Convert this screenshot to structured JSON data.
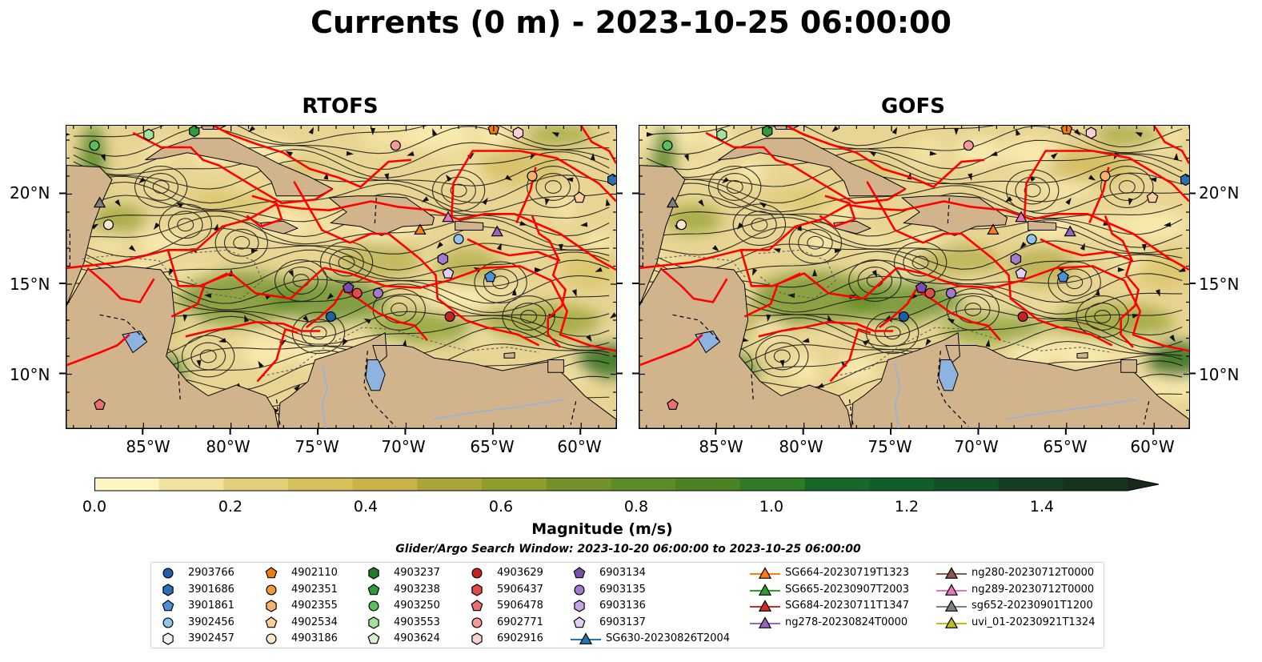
{
  "title": "Currents (0 m) - 2023-10-25 06:00:00",
  "panels": [
    {
      "title": "RTOFS"
    },
    {
      "title": "GOFS"
    }
  ],
  "map": {
    "lat_labels": [
      "20°N",
      "15°N",
      "10°N"
    ],
    "lon_labels": [
      "85°W",
      "80°W",
      "75°W",
      "70°W",
      "65°W",
      "60°W"
    ],
    "colors": {
      "land": "#d2b48c",
      "water_low": "#fff6c2",
      "water_mid": "#c9b64c",
      "water_high": "#2f6e1c",
      "eez": "#ff0000",
      "lakes": "#8fb3e0"
    }
  },
  "colorbar": {
    "label": "Magnitude (m/s)",
    "ticks": [
      "0.0",
      "0.2",
      "0.4",
      "0.6",
      "0.8",
      "1.0",
      "1.2",
      "1.4"
    ],
    "colors": [
      "#fdf6c3",
      "#f1e39e",
      "#e2cf7a",
      "#d6c05c",
      "#c9b24a",
      "#a9a53a",
      "#8f9d2a",
      "#73932a",
      "#5e8b25",
      "#4b8223",
      "#2f7a24",
      "#17692a",
      "#115d2c",
      "#124f29",
      "#163f22",
      "#17331c",
      "#19281a"
    ]
  },
  "search_window": "Glider/Argo Search Window: 2023-10-20 06:00:00 to 2023-10-25 06:00:00",
  "legend": [
    {
      "label": "2903766",
      "shape": "circle",
      "color": "#1f5fa8"
    },
    {
      "label": "3901686",
      "shape": "hexagon",
      "color": "#2c6fb3"
    },
    {
      "label": "3901861",
      "shape": "pentagon",
      "color": "#4a90d9"
    },
    {
      "label": "3902456",
      "shape": "circle",
      "color": "#8fc4ee"
    },
    {
      "label": "3902457",
      "shape": "hexagon",
      "color": "#e8f3fc"
    },
    {
      "label": "4902110",
      "shape": "pentagon",
      "color": "#ee7c0e"
    },
    {
      "label": "4902351",
      "shape": "circle",
      "color": "#f39a3c"
    },
    {
      "label": "4902355",
      "shape": "hexagon",
      "color": "#f7b26b"
    },
    {
      "label": "4902534",
      "shape": "pentagon",
      "color": "#fbcf98"
    },
    {
      "label": "4903186",
      "shape": "circle",
      "color": "#fde8cc"
    },
    {
      "label": "4903237",
      "shape": "hexagon",
      "color": "#1f7a2e"
    },
    {
      "label": "4903238",
      "shape": "pentagon",
      "color": "#2e9a3c"
    },
    {
      "label": "4903250",
      "shape": "circle",
      "color": "#57c05b"
    },
    {
      "label": "4903553",
      "shape": "hexagon",
      "color": "#a3e29a"
    },
    {
      "label": "4903624",
      "shape": "pentagon",
      "color": "#d7f5cf"
    },
    {
      "label": "4903629",
      "shape": "circle",
      "color": "#c82121"
    },
    {
      "label": "5906437",
      "shape": "hexagon",
      "color": "#e04b4b"
    },
    {
      "label": "5906478",
      "shape": "pentagon",
      "color": "#ec6f6f"
    },
    {
      "label": "6902771",
      "shape": "circle",
      "color": "#f49a9a"
    },
    {
      "label": "6902916",
      "shape": "hexagon",
      "color": "#fbd0d0"
    },
    {
      "label": "6903134",
      "shape": "pentagon",
      "color": "#7b4fb0"
    },
    {
      "label": "6903135",
      "shape": "circle",
      "color": "#a37ad0"
    },
    {
      "label": "6903136",
      "shape": "hexagon",
      "color": "#c5a6e6"
    },
    {
      "label": "6903137",
      "shape": "pentagon",
      "color": "#e2d0f7"
    },
    {
      "label": "SG630-20230826T2004",
      "shape": "triangle",
      "color": "#1f77b4"
    },
    {
      "label": "SG664-20230719T1323",
      "shape": "triangle",
      "color": "#ff7f0e"
    },
    {
      "label": "SG665-20230907T2003",
      "shape": "triangle",
      "color": "#2ca02c"
    },
    {
      "label": "SG684-20230711T1347",
      "shape": "triangle",
      "color": "#d62728"
    },
    {
      "label": "ng278-20230824T0000",
      "shape": "triangle",
      "color": "#9467bd"
    },
    {
      "label": "ng280-20230712T0000",
      "shape": "triangle",
      "color": "#8c564b"
    },
    {
      "label": "ng289-20230712T0000",
      "shape": "triangle",
      "color": "#e377c2"
    },
    {
      "label": "sg652-20230901T1200",
      "shape": "triangle",
      "color": "#7f7f7f"
    },
    {
      "label": "uvi_01-20230921T1324",
      "shape": "triangle",
      "color": "#bcbd22"
    }
  ],
  "markers": [
    {
      "shape": "circle",
      "color": "#57c05b",
      "lon": -87.8,
      "lat": 22.7
    },
    {
      "shape": "hexagon",
      "color": "#a3e29a",
      "lon": -84.7,
      "lat": 23.3
    },
    {
      "shape": "hexagon",
      "color": "#2e9a3c",
      "lon": -82.1,
      "lat": 23.5
    },
    {
      "shape": "triangle",
      "color": "#7f7f7f",
      "lon": -87.5,
      "lat": 19.5
    },
    {
      "shape": "circle",
      "color": "#fde8cc",
      "lon": -87.0,
      "lat": 18.3
    },
    {
      "shape": "circle",
      "color": "#f49a9a",
      "lon": -70.6,
      "lat": 22.7
    },
    {
      "shape": "pentagon",
      "color": "#ee7c0e",
      "lon": -65.0,
      "lat": 23.6
    },
    {
      "shape": "hexagon",
      "color": "#fbd0d0",
      "lon": -63.6,
      "lat": 23.4
    },
    {
      "shape": "circle",
      "color": "#f7b26b",
      "lon": -62.8,
      "lat": 21.0
    },
    {
      "shape": "hexagon",
      "color": "#2c6fb3",
      "lon": -58.2,
      "lat": 20.8
    },
    {
      "shape": "pentagon",
      "color": "#fbcf98",
      "lon": -60.1,
      "lat": 19.8
    },
    {
      "shape": "triangle",
      "color": "#e377c2",
      "lon": -67.6,
      "lat": 18.7
    },
    {
      "shape": "triangle",
      "color": "#ff7f0e",
      "lon": -69.2,
      "lat": 18.0
    },
    {
      "shape": "circle",
      "color": "#8fc4ee",
      "lon": -67.0,
      "lat": 17.5
    },
    {
      "shape": "triangle",
      "color": "#9467bd",
      "lon": -64.8,
      "lat": 17.9
    },
    {
      "shape": "hexagon",
      "color": "#a37ad0",
      "lon": -67.9,
      "lat": 16.4
    },
    {
      "shape": "pentagon",
      "color": "#e2d0f7",
      "lon": -67.6,
      "lat": 15.6
    },
    {
      "shape": "pentagon",
      "color": "#4a90d9",
      "lon": -65.2,
      "lat": 15.4
    },
    {
      "shape": "pentagon",
      "color": "#7b4fb0",
      "lon": -73.3,
      "lat": 14.8
    },
    {
      "shape": "circle",
      "color": "#e04b4b",
      "lon": -72.8,
      "lat": 14.5
    },
    {
      "shape": "circle",
      "color": "#a37ad0",
      "lon": -71.6,
      "lat": 14.5
    },
    {
      "shape": "circle",
      "color": "#1f5fa8",
      "lon": -74.3,
      "lat": 13.2
    },
    {
      "shape": "circle",
      "color": "#c82121",
      "lon": -67.5,
      "lat": 13.2
    },
    {
      "shape": "pentagon",
      "color": "#ec6f6f",
      "lon": -87.5,
      "lat": 8.3
    }
  ]
}
